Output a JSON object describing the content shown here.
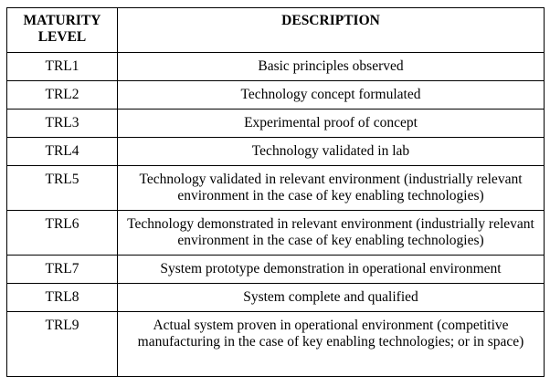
{
  "table": {
    "headers": [
      "MATURITY LEVEL",
      "DESCRIPTION"
    ],
    "rows": [
      {
        "level": "TRL1",
        "description": "Basic principles observed"
      },
      {
        "level": "TRL2",
        "description": "Technology concept formulated"
      },
      {
        "level": "TRL3",
        "description": "Experimental proof of concept"
      },
      {
        "level": "TRL4",
        "description": "Technology validated in lab"
      },
      {
        "level": "TRL5",
        "description": "Technology validated in relevant environment (industrially relevant environment in the case of key enabling technologies)"
      },
      {
        "level": "TRL6",
        "description": "Technology demonstrated in relevant environment (industrially relevant environment in the case of key enabling technologies)"
      },
      {
        "level": "TRL7",
        "description": "System prototype demonstration in operational environment"
      },
      {
        "level": "TRL8",
        "description": "System complete and qualified"
      },
      {
        "level": "TRL9",
        "description": "Actual system proven in operational environment (competitive manufacturing in the case of key enabling technologies; or in space)"
      }
    ]
  }
}
